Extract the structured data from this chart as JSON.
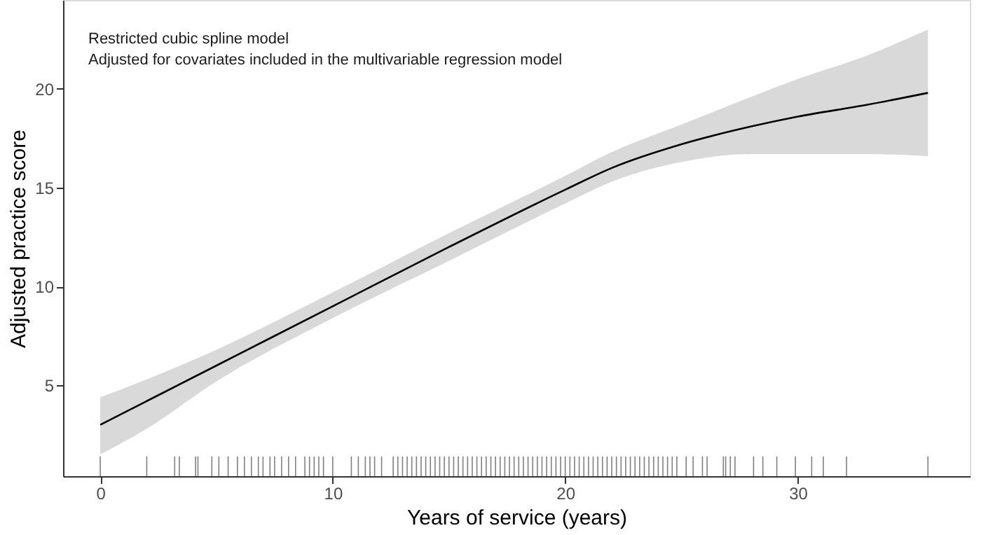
{
  "chart_data": {
    "type": "line",
    "xlabel": "Years of service (years)",
    "ylabel": "Adjusted practice score",
    "annotations": [
      "Restricted cubic spline model",
      "Adjusted for covariates included in the multivariable regression model"
    ],
    "xlim": [
      -1.6,
      37.4
    ],
    "ylim": [
      0.4,
      24.5
    ],
    "xticks": [
      0,
      10,
      20,
      30
    ],
    "yticks": [
      5,
      10,
      15,
      20
    ],
    "grid": false,
    "series": [
      {
        "color": "#000000",
        "x": [
          0,
          2,
          5,
          10,
          15,
          20,
          22,
          25,
          28,
          30,
          33,
          35.6
        ],
        "values": [
          3.0,
          4.2,
          6.0,
          9.0,
          12.0,
          14.9,
          16.0,
          17.2,
          18.1,
          18.6,
          19.2,
          19.8
        ],
        "lower": [
          1.5,
          2.8,
          5.2,
          8.4,
          11.3,
          14.2,
          15.3,
          16.3,
          16.7,
          16.7,
          16.7,
          16.6
        ],
        "upper": [
          4.4,
          5.3,
          6.8,
          9.7,
          12.7,
          15.6,
          16.8,
          18.2,
          19.6,
          20.5,
          21.7,
          23.0
        ]
      },
      {
        "type": "bar",
        "color": "#808080",
        "base": [
          0.4,
          0.4,
          0.4,
          0.4,
          0.4,
          0.4,
          0.4,
          0.4,
          0.4,
          0.4,
          0.4,
          0.4,
          0.4,
          0.4,
          0.4,
          0.4,
          0.4,
          0.4,
          0.4,
          0.4,
          0.4,
          0.4,
          0.4,
          0.4,
          0.4,
          0.4,
          0.4,
          0.4,
          0.4,
          0.4,
          0.4,
          0.4,
          0.4,
          0.4,
          0.4,
          0.4,
          0.4,
          0.4,
          0.4,
          0.4,
          0.4,
          0.4,
          0.4,
          0.4,
          0.4,
          0.4,
          0.4,
          0.4,
          0.4,
          0.4,
          0.4,
          0.4,
          0.4,
          0.4,
          0.4,
          0.4,
          0.4,
          0.4,
          0.4,
          0.4,
          0.4,
          0.4,
          0.4,
          0.4,
          0.4,
          0.4,
          0.4,
          0.4,
          0.4,
          0.4,
          0.4,
          0.4,
          0.4,
          0.4,
          0.4,
          0.4,
          0.4,
          0.4,
          0.4,
          0.4,
          0.4,
          0.4,
          0.4,
          0.4,
          0.4,
          0.4,
          0.4,
          0.4,
          0.4,
          0.4,
          0.4,
          0.4,
          0.4,
          0.4,
          0.4,
          0.4,
          0.4,
          0.4,
          0.4,
          0.4,
          0.4,
          0.4,
          0.4,
          0.4,
          0.4,
          0.4,
          0.4,
          0.4,
          0.4
        ],
        "x": [
          0.0,
          2.0,
          3.2,
          3.4,
          4.1,
          4.2,
          4.8,
          5.1,
          5.5,
          5.9,
          6.2,
          6.5,
          6.8,
          7.0,
          7.3,
          7.5,
          7.8,
          8.1,
          8.4,
          8.8,
          9.0,
          9.2,
          9.4,
          9.6,
          10.0,
          10.8,
          11.1,
          11.4,
          11.6,
          11.8,
          12.1,
          12.6,
          12.8,
          13.0,
          13.2,
          13.4,
          13.6,
          13.8,
          14.0,
          14.2,
          14.4,
          14.6,
          14.8,
          15.0,
          15.2,
          15.4,
          15.6,
          15.8,
          16.0,
          16.2,
          16.4,
          16.6,
          16.8,
          17.0,
          17.2,
          17.4,
          17.6,
          17.8,
          18.0,
          18.2,
          18.4,
          18.6,
          18.8,
          19.0,
          19.2,
          19.4,
          19.6,
          19.8,
          20.0,
          20.2,
          20.4,
          20.6,
          20.8,
          21.0,
          21.2,
          21.4,
          21.6,
          21.8,
          22.0,
          22.2,
          22.4,
          22.6,
          22.8,
          23.0,
          23.2,
          23.4,
          23.6,
          23.8,
          24.0,
          24.2,
          24.4,
          24.6,
          24.8,
          25.2,
          25.5,
          25.9,
          26.1,
          26.8,
          26.9,
          27.1,
          27.3,
          28.1,
          28.5,
          29.1,
          29.9,
          30.6,
          31.1,
          32.1,
          35.6
        ],
        "values": [
          1.0,
          1.0,
          1.0,
          1.0,
          1.0,
          1.0,
          1.0,
          1.0,
          1.0,
          1.0,
          1.0,
          1.0,
          1.0,
          1.0,
          1.0,
          1.0,
          1.0,
          1.0,
          1.0,
          1.0,
          1.0,
          1.0,
          1.0,
          1.0,
          1.0,
          1.0,
          1.0,
          1.0,
          1.0,
          1.0,
          1.0,
          1.0,
          1.0,
          1.0,
          1.0,
          1.0,
          1.0,
          1.0,
          1.0,
          1.0,
          1.0,
          1.0,
          1.0,
          1.0,
          1.0,
          1.0,
          1.0,
          1.0,
          1.0,
          1.0,
          1.0,
          1.0,
          1.0,
          1.0,
          1.0,
          1.0,
          1.0,
          1.0,
          1.0,
          1.0,
          1.0,
          1.0,
          1.0,
          1.0,
          1.0,
          1.0,
          1.0,
          1.0,
          1.0,
          1.0,
          1.0,
          1.0,
          1.0,
          1.0,
          1.0,
          1.0,
          1.0,
          1.0,
          1.0,
          1.0,
          1.0,
          1.0,
          1.0,
          1.0,
          1.0,
          1.0,
          1.0,
          1.0,
          1.0,
          1.0,
          1.0,
          1.0,
          1.0,
          1.0,
          1.0,
          1.0,
          1.0,
          1.0,
          1.0,
          1.0,
          1.0,
          1.0,
          1.0,
          1.0,
          1.0,
          1.0,
          1.0,
          1.0,
          1.0
        ]
      }
    ]
  }
}
